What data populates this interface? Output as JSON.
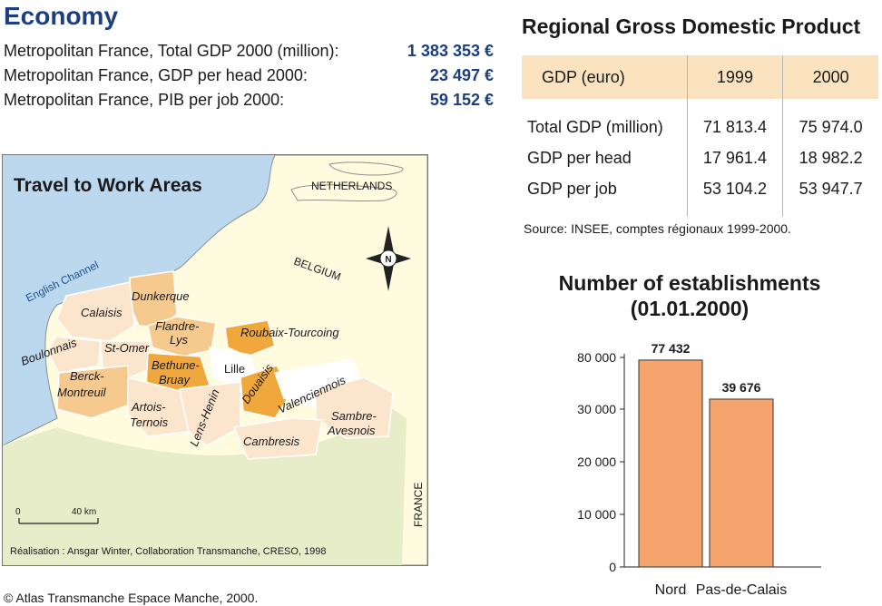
{
  "economy": {
    "title": "Economy",
    "lines": [
      {
        "label": "Metropolitan France, Total GDP 2000 (million):",
        "value": "1 383 353 €"
      },
      {
        "label": "Metropolitan France, GDP per head 2000:",
        "value": "23 497 €"
      },
      {
        "label": "Metropolitan France, PIB per job 2000:",
        "value": "59 152 €"
      }
    ]
  },
  "regional_gdp": {
    "title": "Regional Gross Domestic Product",
    "header": [
      "GDP (euro)",
      "1999",
      "2000"
    ],
    "rows": [
      [
        "Total GDP (million)",
        "71 813.4",
        "75 974.0"
      ],
      [
        "GDP per head",
        "17 961.4",
        "18 982.2"
      ],
      [
        "GDP per job",
        "53 104.2",
        "53 947.7"
      ]
    ],
    "source": "Source: INSEE, comptes régionaux 1999-2000."
  },
  "map": {
    "title": "Travel to Work Areas",
    "labels": {
      "netherlands": "NETHERLANDS",
      "belgium": "BELGIUM",
      "france": "FRANCE",
      "english_channel": "English Channel",
      "compass": "N",
      "dunkerque": "Dunkerque",
      "calaisis": "Calaisis",
      "flandre": "Flandre-",
      "lys": "Lys",
      "roubaix": "Roubaix-Tourcoing",
      "boulonnais": "Boulonnais",
      "st_omer": "St-Omer",
      "bethune": "Bethune-",
      "bruay": "Bruay",
      "lille": "Lille",
      "douaisis": "Douaisis",
      "valenciennois": "Valenciennois",
      "berck": "Berck-",
      "montreuil": "Montreuil",
      "artois": "Artois-",
      "ternois": "Ternois",
      "lens": "Lens-Henin",
      "sambre": "Sambre-",
      "avesnois": "Avesnois",
      "cambresis": "Cambresis"
    },
    "scale_start": "0",
    "scale_end": "40 km",
    "credit": "Réalisation : Ansgar Winter, Collaboration Transmanche, CRESO, 1998",
    "colors": {
      "sea": "#bcd8ef",
      "land": "#fefbdf",
      "south_land": "#e7ecc9",
      "light": "#fbe5cd",
      "medium": "#f6c98e",
      "dark": "#f0a73c",
      "white": "#ffffff"
    }
  },
  "copyright": "© Atlas Transmanche Espace Manche, 2000.",
  "chart_data": {
    "type": "bar",
    "title": "Number of establishments",
    "subtitle": "(01.01.2000)",
    "categories": [
      "Nord",
      "Pas-de-Calais"
    ],
    "values": [
      77432,
      39676
    ],
    "data_labels": [
      "77 432",
      "39 676"
    ],
    "ytick_values": [
      0,
      10000,
      20000,
      30000,
      80000
    ],
    "ytick_labels": [
      "0",
      "10 000",
      "20 000",
      "30 000",
      "80 000"
    ],
    "axis_note": "broken y-axis: 0–30 000 linear, 80 000 shown at top",
    "bar_color": "#f4a46c",
    "grid": false
  }
}
